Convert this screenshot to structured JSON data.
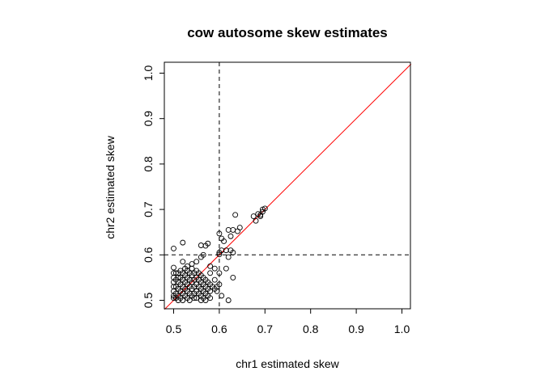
{
  "chart_data": {
    "type": "scatter",
    "title": "cow autosome skew estimates",
    "xlabel": "chr1 estimated skew",
    "ylabel": "chr2 estimated skew",
    "xlim": [
      0.5,
      1.0
    ],
    "ylim": [
      0.5,
      1.0
    ],
    "xticks": [
      "0.5",
      "0.6",
      "0.7",
      "0.8",
      "0.9",
      "1.0"
    ],
    "yticks": [
      "0.5",
      "0.6",
      "0.7",
      "0.8",
      "0.9",
      "1.0"
    ],
    "reference_lines": {
      "vertical_dashed_x": 0.6,
      "horizontal_dashed_y": 0.6,
      "diagonal_y_equals_x": true,
      "diagonal_color": "#ff0000"
    },
    "grid": false,
    "point_style": "open circle",
    "points": [
      [
        0.5,
        0.56
      ],
      [
        0.5,
        0.55
      ],
      [
        0.5,
        0.54
      ],
      [
        0.5,
        0.53
      ],
      [
        0.5,
        0.52
      ],
      [
        0.5,
        0.51
      ],
      [
        0.5,
        0.505
      ],
      [
        0.505,
        0.56
      ],
      [
        0.505,
        0.545
      ],
      [
        0.505,
        0.53
      ],
      [
        0.505,
        0.515
      ],
      [
        0.505,
        0.505
      ],
      [
        0.51,
        0.56
      ],
      [
        0.51,
        0.55
      ],
      [
        0.51,
        0.54
      ],
      [
        0.51,
        0.525
      ],
      [
        0.51,
        0.51
      ],
      [
        0.51,
        0.5
      ],
      [
        0.515,
        0.565
      ],
      [
        0.515,
        0.55
      ],
      [
        0.515,
        0.535
      ],
      [
        0.515,
        0.52
      ],
      [
        0.515,
        0.505
      ],
      [
        0.52,
        0.56
      ],
      [
        0.52,
        0.545
      ],
      [
        0.52,
        0.53
      ],
      [
        0.52,
        0.515
      ],
      [
        0.52,
        0.5
      ],
      [
        0.525,
        0.57
      ],
      [
        0.525,
        0.555
      ],
      [
        0.525,
        0.54
      ],
      [
        0.525,
        0.525
      ],
      [
        0.525,
        0.51
      ],
      [
        0.53,
        0.565
      ],
      [
        0.53,
        0.55
      ],
      [
        0.53,
        0.535
      ],
      [
        0.53,
        0.52
      ],
      [
        0.53,
        0.505
      ],
      [
        0.535,
        0.56
      ],
      [
        0.535,
        0.545
      ],
      [
        0.535,
        0.53
      ],
      [
        0.535,
        0.515
      ],
      [
        0.535,
        0.5
      ],
      [
        0.54,
        0.57
      ],
      [
        0.54,
        0.555
      ],
      [
        0.54,
        0.54
      ],
      [
        0.54,
        0.525
      ],
      [
        0.54,
        0.51
      ],
      [
        0.545,
        0.56
      ],
      [
        0.545,
        0.545
      ],
      [
        0.545,
        0.53
      ],
      [
        0.545,
        0.515
      ],
      [
        0.545,
        0.505
      ],
      [
        0.55,
        0.565
      ],
      [
        0.55,
        0.55
      ],
      [
        0.55,
        0.535
      ],
      [
        0.55,
        0.52
      ],
      [
        0.55,
        0.505
      ],
      [
        0.555,
        0.56
      ],
      [
        0.555,
        0.545
      ],
      [
        0.555,
        0.53
      ],
      [
        0.555,
        0.515
      ],
      [
        0.56,
        0.555
      ],
      [
        0.56,
        0.54
      ],
      [
        0.56,
        0.525
      ],
      [
        0.56,
        0.51
      ],
      [
        0.56,
        0.5
      ],
      [
        0.565,
        0.55
      ],
      [
        0.565,
        0.535
      ],
      [
        0.565,
        0.52
      ],
      [
        0.565,
        0.505
      ],
      [
        0.57,
        0.545
      ],
      [
        0.57,
        0.53
      ],
      [
        0.57,
        0.515
      ],
      [
        0.57,
        0.5
      ],
      [
        0.575,
        0.54
      ],
      [
        0.575,
        0.525
      ],
      [
        0.575,
        0.51
      ],
      [
        0.58,
        0.56
      ],
      [
        0.58,
        0.535
      ],
      [
        0.58,
        0.52
      ],
      [
        0.58,
        0.505
      ],
      [
        0.585,
        0.53
      ],
      [
        0.59,
        0.525
      ],
      [
        0.59,
        0.545
      ],
      [
        0.595,
        0.53
      ],
      [
        0.5,
        0.614
      ],
      [
        0.5,
        0.572
      ],
      [
        0.52,
        0.627
      ],
      [
        0.52,
        0.585
      ],
      [
        0.53,
        0.575
      ],
      [
        0.54,
        0.58
      ],
      [
        0.55,
        0.585
      ],
      [
        0.56,
        0.621
      ],
      [
        0.56,
        0.595
      ],
      [
        0.57,
        0.62
      ],
      [
        0.575,
        0.625
      ],
      [
        0.58,
        0.575
      ],
      [
        0.565,
        0.6
      ],
      [
        0.59,
        0.57
      ],
      [
        0.6,
        0.647
      ],
      [
        0.605,
        0.636
      ],
      [
        0.61,
        0.63
      ],
      [
        0.62,
        0.655
      ],
      [
        0.625,
        0.641
      ],
      [
        0.63,
        0.655
      ],
      [
        0.64,
        0.652
      ],
      [
        0.645,
        0.66
      ],
      [
        0.635,
        0.688
      ],
      [
        0.6,
        0.605
      ],
      [
        0.6,
        0.601
      ],
      [
        0.605,
        0.61
      ],
      [
        0.615,
        0.61
      ],
      [
        0.62,
        0.595
      ],
      [
        0.625,
        0.61
      ],
      [
        0.63,
        0.605
      ],
      [
        0.63,
        0.55
      ],
      [
        0.62,
        0.5
      ],
      [
        0.615,
        0.57
      ],
      [
        0.6,
        0.56
      ],
      [
        0.6,
        0.535
      ],
      [
        0.595,
        0.52
      ],
      [
        0.605,
        0.51
      ],
      [
        0.675,
        0.685
      ],
      [
        0.68,
        0.675
      ],
      [
        0.685,
        0.69
      ],
      [
        0.69,
        0.688
      ],
      [
        0.69,
        0.685
      ],
      [
        0.695,
        0.7
      ],
      [
        0.695,
        0.695
      ],
      [
        0.7,
        0.702
      ]
    ]
  }
}
